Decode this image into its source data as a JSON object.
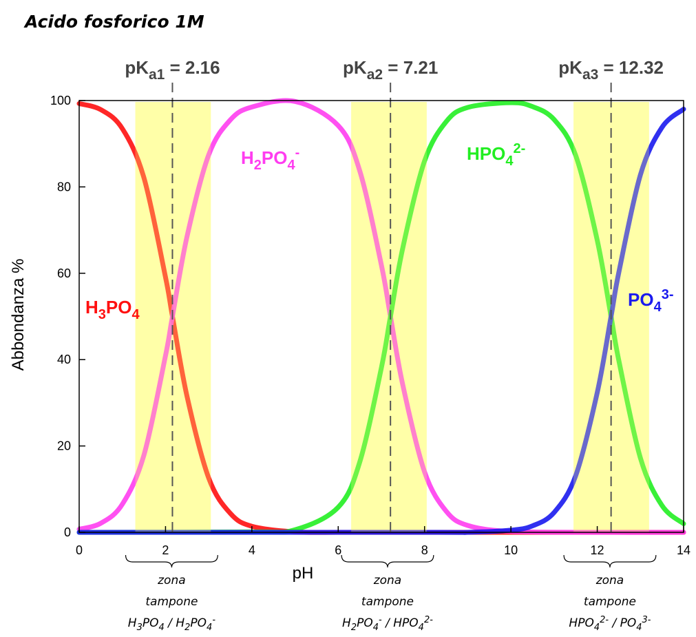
{
  "chart_data": {
    "type": "line",
    "title": "Acido fosforico 1M",
    "xlabel": "pH",
    "ylabel": "Abbondanza %",
    "xlim": [
      0,
      14
    ],
    "ylim": [
      0,
      100
    ],
    "xticks": [
      0,
      2,
      4,
      6,
      8,
      10,
      12,
      14
    ],
    "yticks": [
      0,
      20,
      40,
      60,
      80,
      100
    ],
    "grid": false,
    "legend": "none",
    "pKa": [
      2.16,
      7.21,
      12.32
    ],
    "pKa_labels": [
      {
        "main": "pK",
        "sub": "a1",
        "rest": " = 2.16"
      },
      {
        "main": "pK",
        "sub": "a2",
        "rest": " = 7.21"
      },
      {
        "main": "pK",
        "sub": "a3",
        "rest": " = 12.32"
      }
    ],
    "buffer_zones": [
      {
        "from": 1.3,
        "to": 3.05,
        "line1": "zona",
        "line2": "tampone",
        "pair": [
          {
            "t": "H"
          },
          {
            "t": "3",
            "s": "sub"
          },
          {
            "t": "PO"
          },
          {
            "t": "4",
            "s": "sub"
          },
          {
            "t": " / H"
          },
          {
            "t": "2",
            "s": "sub"
          },
          {
            "t": "PO"
          },
          {
            "t": "4",
            "s": "sub"
          },
          {
            "t": "-",
            "s": "sup"
          }
        ]
      },
      {
        "from": 6.3,
        "to": 8.05,
        "line1": "zona",
        "line2": "tampone",
        "pair": [
          {
            "t": "H"
          },
          {
            "t": "2",
            "s": "sub"
          },
          {
            "t": "PO"
          },
          {
            "t": "4",
            "s": "sub"
          },
          {
            "t": "-",
            "s": "sup"
          },
          {
            "t": " / HPO"
          },
          {
            "t": "4",
            "s": "sub"
          },
          {
            "t": "2-",
            "s": "sup"
          }
        ]
      },
      {
        "from": 11.45,
        "to": 13.2,
        "line1": "zona",
        "line2": "tampone",
        "pair": [
          {
            "t": "HPO"
          },
          {
            "t": "4",
            "s": "sub"
          },
          {
            "t": "2-",
            "s": "sup"
          },
          {
            "t": " / PO"
          },
          {
            "t": "4",
            "s": "sub"
          },
          {
            "t": "3-",
            "s": "sup"
          }
        ]
      }
    ],
    "series": [
      {
        "name": "H3PO4",
        "color": "#ff1010",
        "label": [
          {
            "t": "H"
          },
          {
            "t": "3",
            "s": "sub"
          },
          {
            "t": "PO"
          },
          {
            "t": "4",
            "s": "sub"
          }
        ],
        "x": [
          0,
          0.5,
          1,
          1.5,
          2,
          2.16,
          2.5,
          3,
          3.5,
          4,
          5,
          6,
          7,
          8,
          10,
          12,
          14
        ],
        "y": [
          99.3,
          97.9,
          93.5,
          82.1,
          59.1,
          50.0,
          31.4,
          12.6,
          4.4,
          1.4,
          0.1,
          0,
          0,
          0,
          0,
          0,
          0
        ]
      },
      {
        "name": "H2PO4-",
        "color": "#ff3df0",
        "label": [
          {
            "t": "H"
          },
          {
            "t": "2",
            "s": "sub"
          },
          {
            "t": "PO"
          },
          {
            "t": "4",
            "s": "sub"
          },
          {
            "t": "-",
            "s": "sup"
          }
        ],
        "x": [
          0,
          0.5,
          1,
          1.5,
          2,
          2.16,
          2.5,
          3,
          3.5,
          4,
          5,
          6,
          6.5,
          7,
          7.21,
          7.5,
          8,
          8.5,
          9,
          10,
          12,
          14
        ],
        "y": [
          0.7,
          2.1,
          6.5,
          17.9,
          40.9,
          50.0,
          68.6,
          87.4,
          95.5,
          98.5,
          99.8,
          94.2,
          83.7,
          61.9,
          50.0,
          33.9,
          14.0,
          4.9,
          1.6,
          0.2,
          0,
          0
        ]
      },
      {
        "name": "HPO42-",
        "color": "#22ee22",
        "label": [
          {
            "t": "HPO"
          },
          {
            "t": "4",
            "s": "sub"
          },
          {
            "t": "2-",
            "s": "sup"
          }
        ],
        "x": [
          0,
          4,
          5,
          6,
          6.5,
          7,
          7.21,
          7.5,
          8,
          8.5,
          9,
          10,
          10.5,
          11,
          11.5,
          12,
          12.32,
          12.5,
          13,
          13.5,
          14
        ],
        "y": [
          0,
          0.1,
          0.6,
          5.8,
          16.3,
          38.1,
          50.0,
          66.1,
          86.0,
          95.1,
          98.4,
          99.5,
          98.6,
          95.6,
          87.3,
          67.6,
          50.0,
          39.8,
          17.2,
          6.2,
          2.0
        ]
      },
      {
        "name": "PO43-",
        "color": "#1a1aee",
        "label": [
          {
            "t": "PO"
          },
          {
            "t": "4",
            "s": "sub"
          },
          {
            "t": "3-",
            "s": "sup"
          }
        ],
        "x": [
          0,
          8,
          9,
          10,
          10.5,
          11,
          11.5,
          12,
          12.32,
          12.5,
          13,
          13.5,
          14
        ],
        "y": [
          0,
          0,
          0,
          0.5,
          1.5,
          4.6,
          13.1,
          32.4,
          50.0,
          60.2,
          82.8,
          93.8,
          98.0
        ]
      }
    ]
  }
}
